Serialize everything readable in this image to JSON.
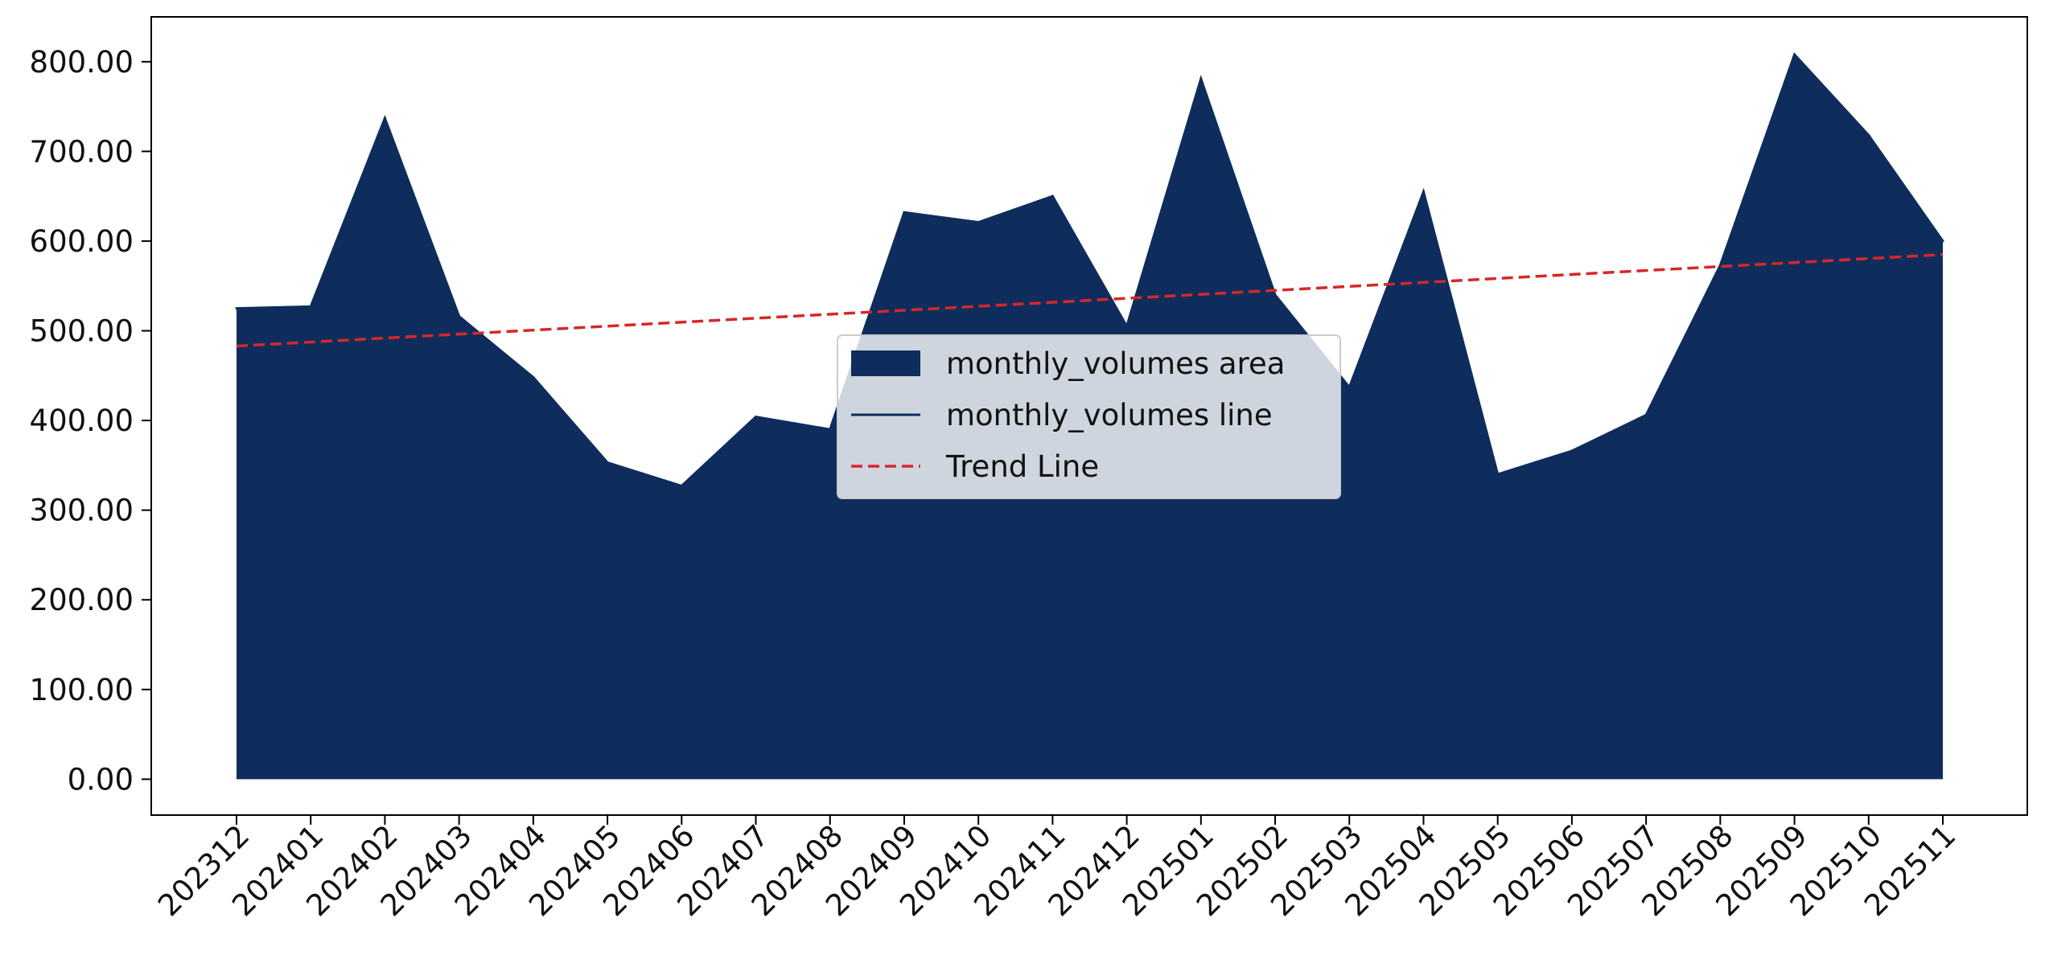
{
  "chart_data": {
    "type": "area",
    "title": "",
    "xlabel": "",
    "ylabel": "",
    "categories": [
      "202312",
      "202401",
      "202402",
      "202403",
      "202404",
      "202405",
      "202406",
      "202407",
      "202408",
      "202409",
      "202410",
      "202411",
      "202412",
      "202501",
      "202502",
      "202503",
      "202504",
      "202505",
      "202506",
      "202507",
      "202508",
      "202509",
      "202510",
      "202511"
    ],
    "series": [
      {
        "name": "monthly_volumes area",
        "kind": "area",
        "color": "#0e2d5c",
        "values": [
          525,
          527,
          737,
          516,
          448,
          353,
          327,
          404,
          390,
          632,
          621,
          650,
          505,
          781,
          540,
          437,
          655,
          340,
          366,
          406,
          573,
          808,
          718,
          600
        ]
      },
      {
        "name": "monthly_volumes line",
        "kind": "line",
        "color": "#0e2d5c",
        "values": [
          525,
          527,
          737,
          516,
          448,
          353,
          327,
          404,
          390,
          632,
          621,
          650,
          505,
          781,
          540,
          437,
          655,
          340,
          366,
          406,
          573,
          808,
          718,
          600
        ]
      },
      {
        "name": "Trend Line",
        "kind": "trend",
        "color": "#d62728",
        "dash": "dashed",
        "start": 483,
        "end": 585
      }
    ],
    "yticks": [
      "0.00",
      "100.00",
      "200.00",
      "300.00",
      "400.00",
      "500.00",
      "600.00",
      "700.00",
      "800.00"
    ],
    "ylim": [
      -40,
      850
    ],
    "grid": false,
    "legend_position": "center"
  }
}
